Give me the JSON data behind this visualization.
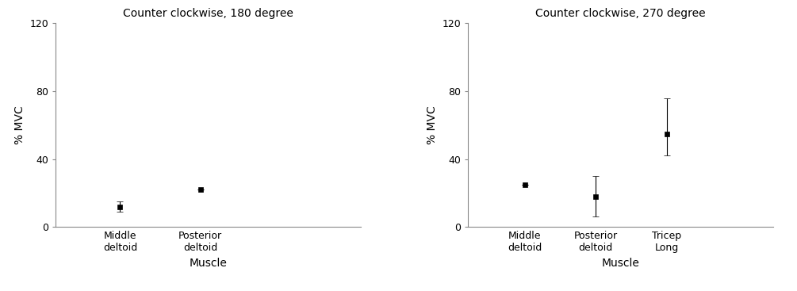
{
  "chart1": {
    "title": "Counter clockwise, 180 degree",
    "categories": [
      "Middle\ndeltoid",
      "Posterior\ndeltoid"
    ],
    "x_positions": [
      1,
      2
    ],
    "means": [
      12,
      22
    ],
    "errors_lo": [
      3.0,
      0.0
    ],
    "errors_hi": [
      3.0,
      0.0
    ],
    "xlabel": "Muscle",
    "ylabel": "% MVC",
    "ylim": [
      0,
      120
    ],
    "yticks": [
      0,
      40,
      80,
      120
    ],
    "xlim": [
      0.2,
      4.0
    ]
  },
  "chart2": {
    "title": "Counter clockwise, 270 degree",
    "categories": [
      "Middle\ndeltoid",
      "Posterior\ndeltoid",
      "Tricep\nLong"
    ],
    "x_positions": [
      1,
      2,
      3
    ],
    "means": [
      25,
      18,
      55
    ],
    "errors_lo": [
      0.0,
      12.0,
      13.0
    ],
    "errors_hi": [
      0.0,
      12.0,
      21.0
    ],
    "xlabel": "Muscle",
    "ylabel": "% MVC",
    "ylim": [
      0,
      120
    ],
    "yticks": [
      0,
      40,
      80,
      120
    ],
    "xlim": [
      0.2,
      4.5
    ]
  },
  "marker": "s",
  "marker_size": 5,
  "marker_color": "black",
  "capsize": 3,
  "elinewidth": 0.8,
  "background_color": "#ffffff",
  "font_size_title": 10,
  "font_size_label": 10,
  "font_size_tick": 9,
  "spine_color": "#888888"
}
